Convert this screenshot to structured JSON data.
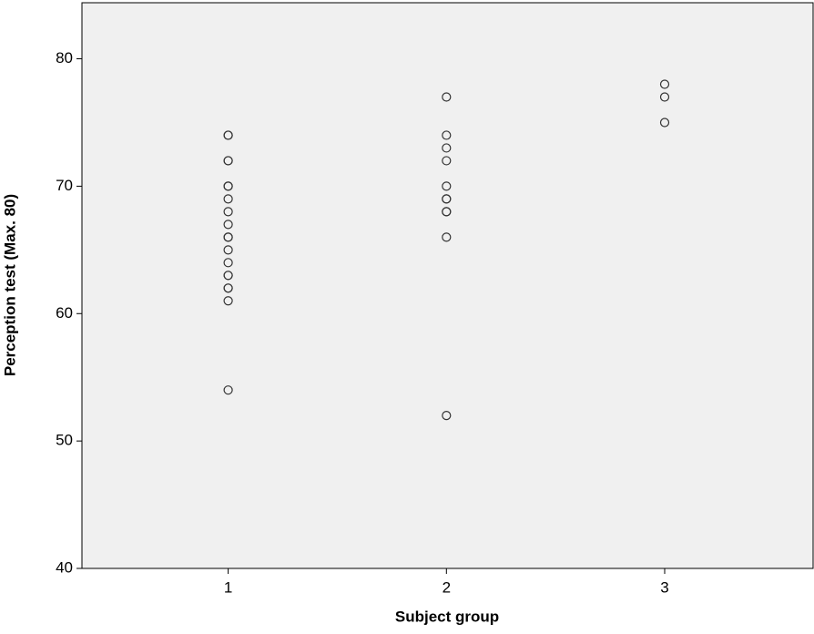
{
  "chart_data": {
    "type": "scatter",
    "x_label": "Subject group",
    "y_label": "Perception test (Max. 80)",
    "x": [
      1,
      1,
      1,
      1,
      1,
      1,
      1,
      1,
      1,
      1,
      1,
      1,
      1,
      1,
      1,
      1,
      1,
      1,
      1,
      2,
      2,
      2,
      2,
      2,
      2,
      2,
      2,
      2,
      2,
      2,
      3,
      3,
      3
    ],
    "y": [
      74,
      74,
      72,
      72,
      70,
      70,
      69,
      68,
      67,
      66,
      66,
      65,
      64,
      63,
      63,
      62,
      62,
      61,
      54,
      77,
      74,
      73,
      72,
      70,
      69,
      69,
      68,
      68,
      66,
      52,
      78,
      77,
      75
    ],
    "xlim": [
      0.33,
      3.68
    ],
    "xticks": [
      1,
      2,
      3
    ],
    "ylim": [
      40,
      84.4
    ],
    "yticks": [
      40,
      50,
      60,
      70,
      80
    ],
    "color": "#333333",
    "background": "#f0f0f0"
  }
}
